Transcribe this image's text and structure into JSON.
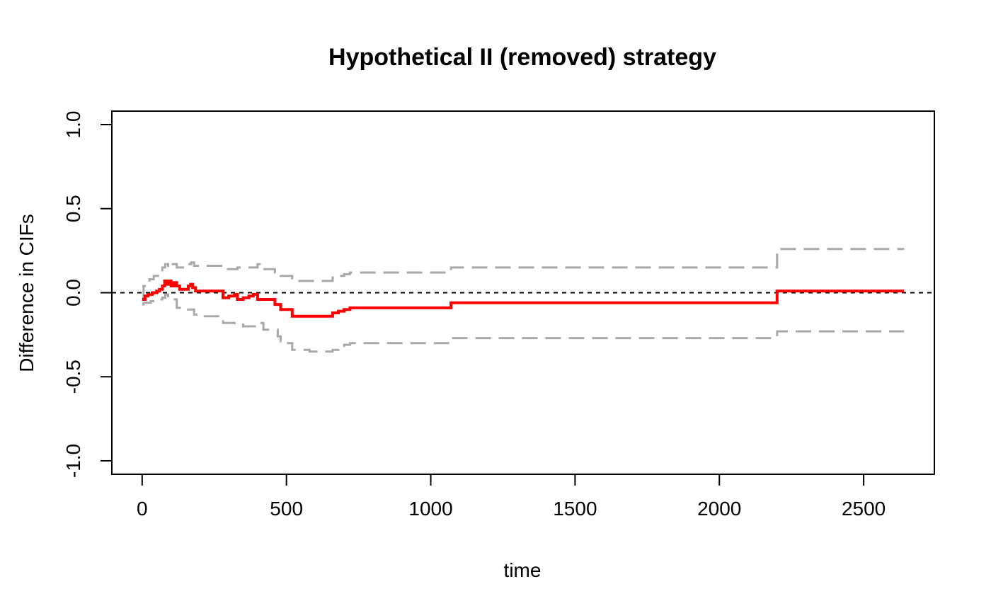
{
  "chart_data": {
    "type": "line",
    "title": "Hypothetical II (removed) strategy",
    "xlabel": "time",
    "ylabel": "Difference in CIFs",
    "xlim": [
      -105,
      2745
    ],
    "ylim": [
      -1.08,
      1.08
    ],
    "x_ticks": [
      0,
      500,
      1000,
      1500,
      2000,
      2500
    ],
    "x_tick_labels": [
      "0",
      "500",
      "1000",
      "1500",
      "2000",
      "2500"
    ],
    "y_ticks": [
      -1.0,
      -0.5,
      0.0,
      0.5,
      1.0
    ],
    "y_tick_labels": [
      "-1.0",
      "-0.5",
      "0.0",
      "0.5",
      "1.0"
    ],
    "reference_line": {
      "y": 0,
      "style": "dashed",
      "color": "#000000"
    },
    "grid": false,
    "legend": "none",
    "series": [
      {
        "role": "estimate",
        "color": "#ff0000",
        "style": "solid-step",
        "x": [
          0,
          10,
          20,
          35,
          50,
          60,
          70,
          78,
          85,
          90,
          100,
          110,
          120,
          130,
          150,
          160,
          168,
          175,
          185,
          200,
          270,
          280,
          300,
          320,
          330,
          350,
          370,
          385,
          400,
          420,
          460,
          470,
          480,
          500,
          520,
          580,
          640,
          660,
          680,
          700,
          720,
          1060,
          1070,
          2190,
          2200,
          2640
        ],
        "values": [
          -0.04,
          -0.02,
          -0.01,
          0.0,
          0.01,
          0.02,
          0.04,
          0.07,
          0.05,
          0.07,
          0.04,
          0.06,
          0.04,
          0.02,
          0.02,
          0.04,
          0.05,
          0.03,
          0.01,
          0.01,
          0.01,
          -0.03,
          -0.02,
          -0.01,
          -0.04,
          -0.03,
          -0.02,
          -0.01,
          -0.04,
          -0.04,
          -0.07,
          -0.07,
          -0.1,
          -0.1,
          -0.14,
          -0.14,
          -0.14,
          -0.12,
          -0.11,
          -0.1,
          -0.09,
          -0.09,
          -0.06,
          -0.06,
          0.01,
          0.01
        ]
      },
      {
        "role": "upper-bound",
        "color": "#a9a9a9",
        "style": "dashed-step",
        "x": [
          0,
          5,
          15,
          25,
          40,
          55,
          70,
          80,
          90,
          100,
          120,
          140,
          160,
          170,
          180,
          200,
          270,
          280,
          300,
          330,
          360,
          400,
          420,
          460,
          480,
          500,
          520,
          600,
          640,
          660,
          680,
          700,
          720,
          1060,
          1070,
          2190,
          2200,
          2640
        ],
        "values": [
          -0.03,
          0.04,
          0.06,
          0.08,
          0.1,
          0.12,
          0.15,
          0.17,
          0.15,
          0.17,
          0.15,
          0.15,
          0.17,
          0.18,
          0.16,
          0.16,
          0.16,
          0.14,
          0.14,
          0.15,
          0.15,
          0.17,
          0.14,
          0.12,
          0.1,
          0.1,
          0.07,
          0.07,
          0.07,
          0.09,
          0.1,
          0.11,
          0.12,
          0.12,
          0.15,
          0.15,
          0.26,
          0.26
        ]
      },
      {
        "role": "lower-bound",
        "color": "#a9a9a9",
        "style": "dashed-step",
        "x": [
          0,
          5,
          15,
          30,
          45,
          60,
          70,
          80,
          90,
          100,
          120,
          150,
          170,
          180,
          200,
          270,
          280,
          320,
          350,
          400,
          420,
          470,
          480,
          500,
          520,
          580,
          640,
          660,
          680,
          700,
          720,
          1060,
          1070,
          2190,
          2200,
          2640
        ],
        "values": [
          -0.07,
          -0.06,
          -0.06,
          -0.05,
          -0.04,
          -0.04,
          -0.03,
          -0.01,
          -0.03,
          -0.04,
          -0.09,
          -0.1,
          -0.1,
          -0.13,
          -0.14,
          -0.17,
          -0.18,
          -0.19,
          -0.2,
          -0.18,
          -0.22,
          -0.26,
          -0.29,
          -0.3,
          -0.34,
          -0.35,
          -0.35,
          -0.34,
          -0.33,
          -0.31,
          -0.3,
          -0.3,
          -0.27,
          -0.27,
          -0.23,
          -0.23
        ]
      }
    ]
  }
}
